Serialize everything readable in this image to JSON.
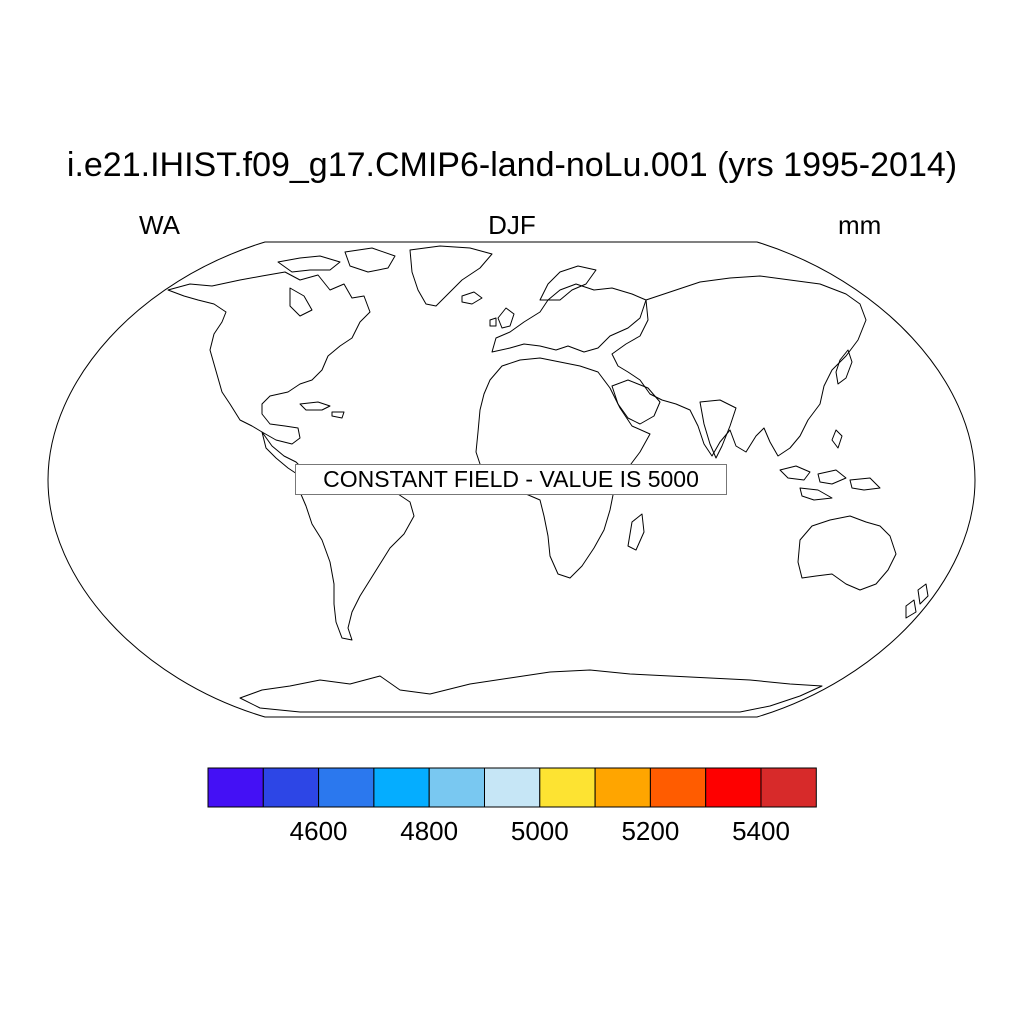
{
  "header": {
    "title": "i.e21.IHIST.f09_g17.CMIP6-land-noLu.001 (yrs 1995-2014)",
    "left_label": "WA",
    "center_label": "DJF",
    "right_label": "mm"
  },
  "map": {
    "projection": "robinson",
    "note": "CONSTANT FIELD - VALUE IS 5000"
  },
  "colorbar": {
    "colors": [
      "#4410f5",
      "#2d46e6",
      "#2b78ee",
      "#05adff",
      "#79c8f1",
      "#c6e6f6",
      "#fde332",
      "#ffa500",
      "#ff5c00",
      "#fe0000",
      "#d72a2a"
    ],
    "boundaries": [
      4500,
      4600,
      4700,
      4800,
      4900,
      5000,
      5100,
      5200,
      5300,
      5400,
      5500
    ],
    "labels": [
      "4600",
      "4800",
      "5000",
      "5200",
      "5400"
    ],
    "label_values": [
      4600,
      4800,
      5000,
      5200,
      5400
    ]
  }
}
